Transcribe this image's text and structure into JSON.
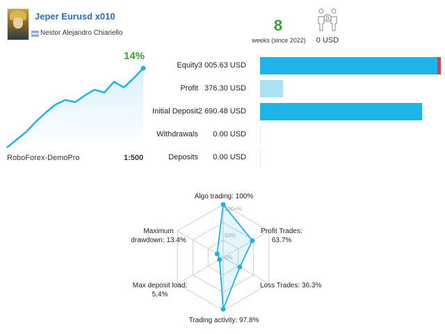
{
  "signal": {
    "name": "Jeper Eurusd x010",
    "author": "Nestor Alejandro Chiariello",
    "weeks": "8",
    "weeks_caption": "weeks (since 2022)",
    "subscribers_count": "0",
    "subscribers_funds": "0 USD",
    "growth": "14%",
    "broker": "RoboForex-DemoPro",
    "leverage": "1:500"
  },
  "colors": {
    "accent": "#1eb4e8",
    "accent_light": "#a9e2f7",
    "title": "#2b6cc4",
    "positive": "#3aa13a",
    "loss_marker": "#e63946"
  },
  "icons": [
    "avatar",
    "flag-icon",
    "subscribers-icon"
  ],
  "stats": [
    {
      "label": "Equity",
      "value": "3 005.63 USD",
      "amount": 3005.63
    },
    {
      "label": "Profit",
      "value": "376.30 USD",
      "amount": 376.3
    },
    {
      "label": "Initial Deposit",
      "value": "2 690.48 USD",
      "amount": 2690.48
    },
    {
      "label": "Withdrawals",
      "value": "0.00 USD",
      "amount": 0
    },
    {
      "label": "Deposits",
      "value": "0.00 USD",
      "amount": 0
    }
  ],
  "growth_curve": [
    0,
    1.4,
    2.8,
    4.6,
    6.2,
    7.6,
    8.4,
    8.0,
    9.2,
    10.2,
    9.7,
    11.6,
    10.6,
    12.2,
    14
  ],
  "radar": {
    "scale_labels": [
      "100+%",
      "50%",
      "0%"
    ],
    "axes": [
      {
        "label": "Algo trading: 100%",
        "value": 100
      },
      {
        "label": "Profit Trades:\n63.7%",
        "value": 63.7
      },
      {
        "label": "Loss Trades: 36.3%",
        "value": 36.3
      },
      {
        "label": "Trading activity: 97.8%",
        "value": 97.8
      },
      {
        "label": "Max deposit load:\n5.4%",
        "value": 5.4
      },
      {
        "label": "Maximum\ndrawdown: 13.4%",
        "value": 13.4
      }
    ]
  }
}
